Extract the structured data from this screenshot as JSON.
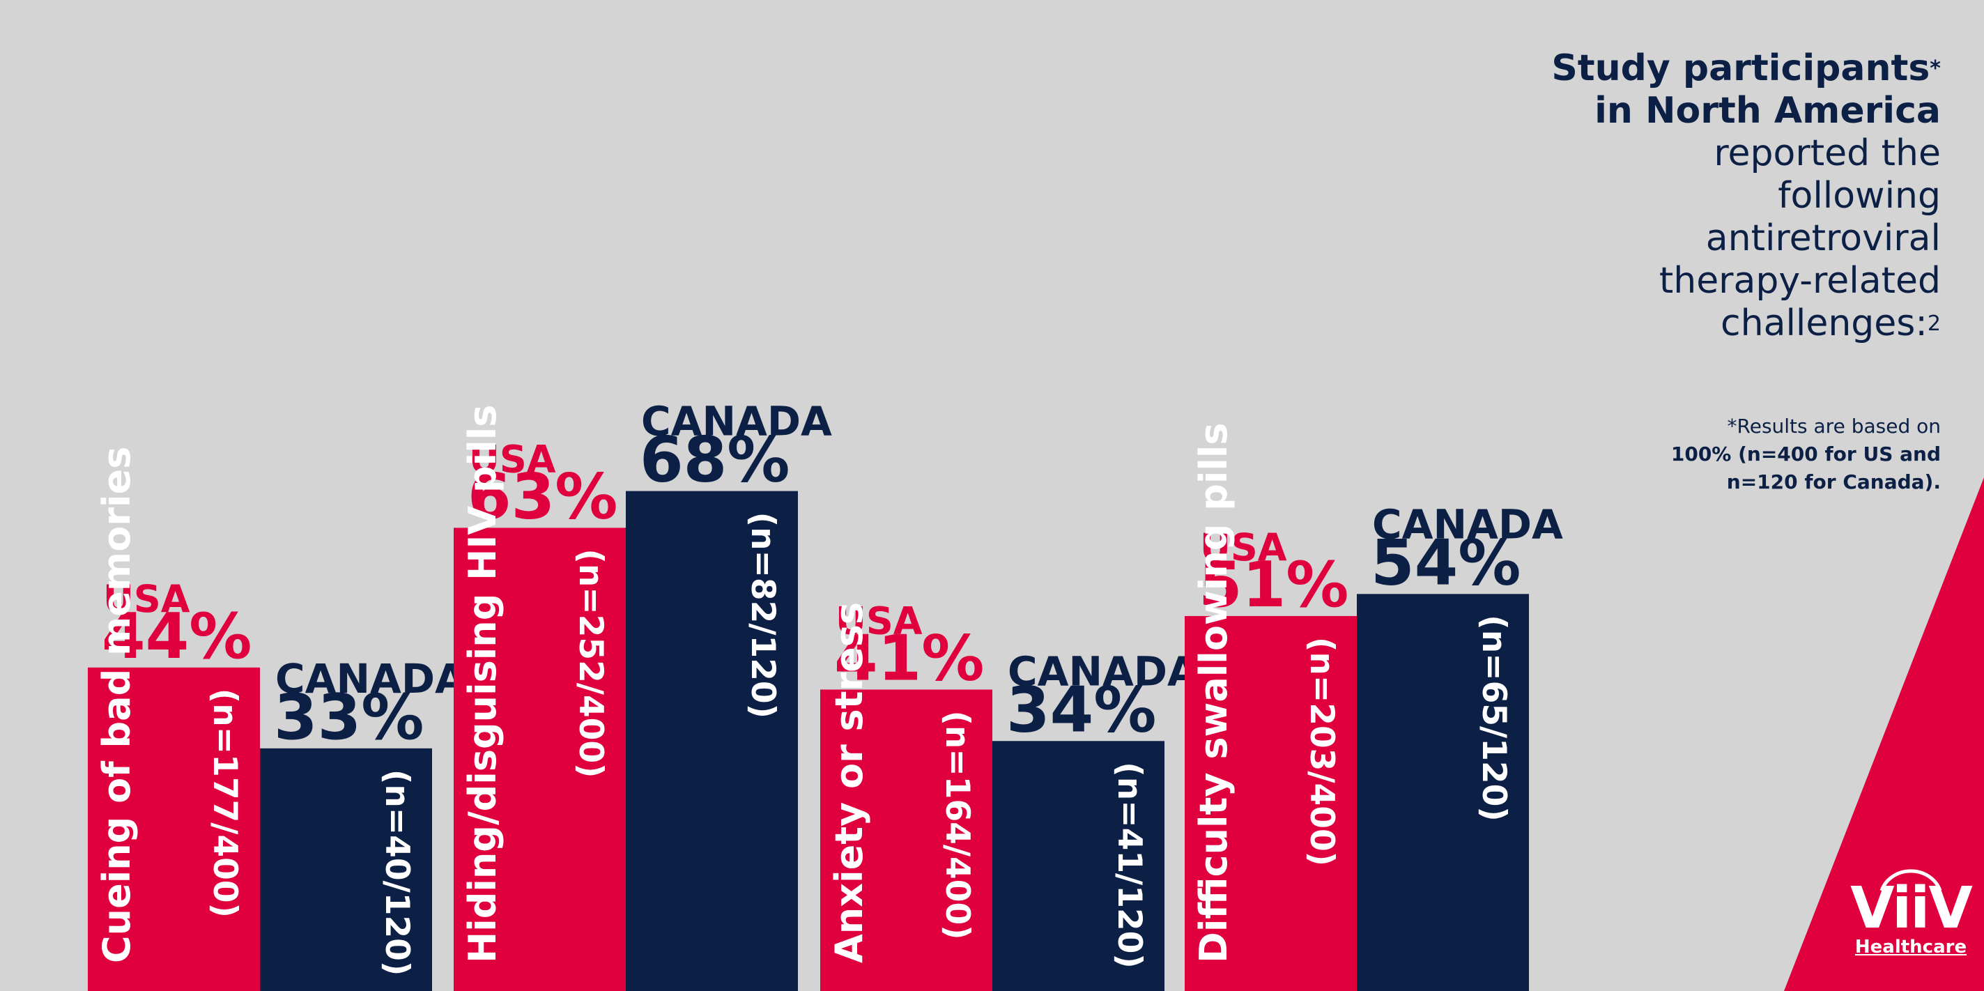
{
  "colors": {
    "background": "#d4d4d4",
    "usa": "#e0003e",
    "canada": "#0c1f45",
    "bar_text": "#ffffff"
  },
  "heading": {
    "line1": "Study participants",
    "line1_mark": "*",
    "line2": "in North America",
    "line3": "reported the",
    "line4": "following",
    "line5": "antiretroviral",
    "line6": "therapy-related",
    "line7": "challenges:",
    "line7_ref": "2"
  },
  "footnote": {
    "line1": "*Results are based on",
    "line2": "100% (n=400 for US and",
    "line3": "n=120 for Canada)."
  },
  "logo": {
    "word": "ViiV",
    "sub": "Healthcare"
  },
  "chart_data": {
    "type": "bar",
    "title": "Study participants* in North America reported the following antiretroviral therapy-related challenges",
    "ylim": [
      0,
      100
    ],
    "grid": false,
    "series_names": [
      "USA",
      "CANADA"
    ],
    "groups": [
      {
        "category": "Cueing of bad memories",
        "bars": [
          {
            "country": "USA",
            "value": 44,
            "label": "44%",
            "n": "(n=177/400)"
          },
          {
            "country": "CANADA",
            "value": 33,
            "label": "33%",
            "n": "(n=40/120)"
          }
        ]
      },
      {
        "category": "Hiding/disguising HIV pills",
        "bars": [
          {
            "country": "USA",
            "value": 63,
            "label": "63%",
            "n": "(n=252/400)"
          },
          {
            "country": "CANADA",
            "value": 68,
            "label": "68%",
            "n": "(n=82/120)"
          }
        ]
      },
      {
        "category": "Anxiety or stress",
        "bars": [
          {
            "country": "USA",
            "value": 41,
            "label": "41%",
            "n": "(n=164/400)"
          },
          {
            "country": "CANADA",
            "value": 34,
            "label": "34%",
            "n": "(n=41/120)"
          }
        ]
      },
      {
        "category": "Difficulty swallowing pills",
        "bars": [
          {
            "country": "USA",
            "value": 51,
            "label": "51%",
            "n": "(n=203/400)"
          },
          {
            "country": "CANADA",
            "value": 54,
            "label": "54%",
            "n": "(n=65/120)"
          }
        ]
      }
    ]
  }
}
